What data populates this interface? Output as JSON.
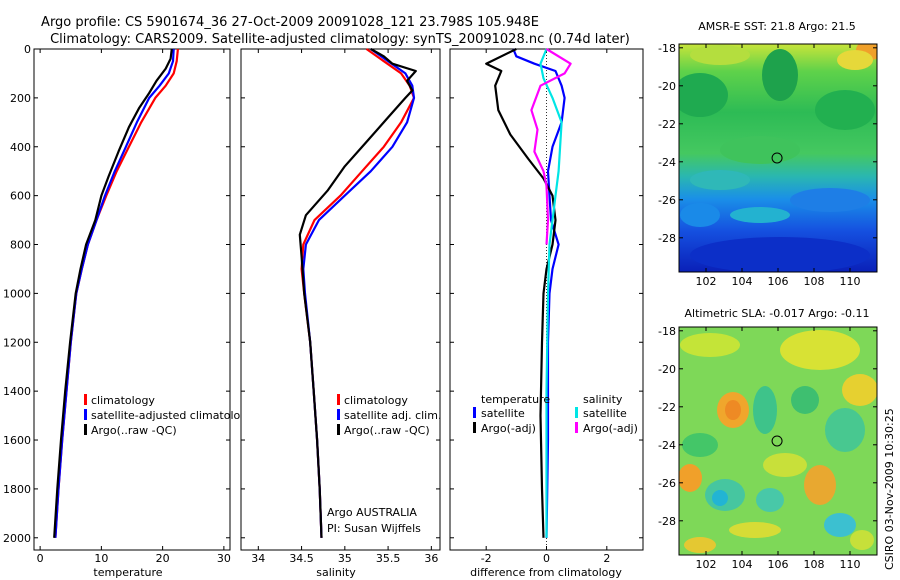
{
  "title": {
    "line1": "Argo profile: CS 5901674_36 27-Oct-2009 20091028_121 23.798S 105.948E",
    "line2": "Climatology: CARS2009. Satellite-adjusted climatology: synTS_20091028.nc (0.74d later)"
  },
  "side_label": "CSIRO 03-Nov-2009 10:30:25",
  "colors": {
    "climatology": "#ff0000",
    "satellite": "#0000ff",
    "argo": "#000000",
    "sal_satellite": "#00e5e5",
    "sal_argo": "#ff00ff"
  },
  "chart_data": [
    {
      "id": "temperature",
      "type": "line",
      "xlabel": "temperature",
      "ylabel": "",
      "xlim": [
        -1,
        31
      ],
      "ylim": [
        0,
        2050
      ],
      "y_reversed": true,
      "xticks": [
        "0",
        "10",
        "20",
        "30"
      ],
      "yticks": [
        "0",
        "200",
        "400",
        "600",
        "800",
        "1000",
        "1200",
        "1400",
        "1600",
        "1800",
        "2000"
      ],
      "legend": [
        "climatology",
        "satellite-adjusted climatolog",
        "Argo(..raw -QC)"
      ],
      "series": [
        {
          "name": "climatology",
          "color": "#ff0000",
          "points": [
            [
              22.5,
              0
            ],
            [
              22.3,
              50
            ],
            [
              21.8,
              100
            ],
            [
              20.5,
              150
            ],
            [
              18.8,
              200
            ],
            [
              16.5,
              300
            ],
            [
              14.5,
              400
            ],
            [
              12.5,
              500
            ],
            [
              10.8,
              600
            ],
            [
              9.2,
              700
            ],
            [
              7.8,
              800
            ],
            [
              6.8,
              900
            ],
            [
              5.9,
              1000
            ],
            [
              5.0,
              1200
            ],
            [
              4.3,
              1400
            ],
            [
              3.6,
              1600
            ],
            [
              3.0,
              1800
            ],
            [
              2.5,
              2000
            ]
          ]
        },
        {
          "name": "satellite",
          "color": "#0000ff",
          "points": [
            [
              21.8,
              0
            ],
            [
              21.7,
              50
            ],
            [
              21.0,
              100
            ],
            [
              19.5,
              150
            ],
            [
              17.8,
              200
            ],
            [
              15.8,
              300
            ],
            [
              14.0,
              400
            ],
            [
              12.2,
              500
            ],
            [
              10.6,
              600
            ],
            [
              9.2,
              700
            ],
            [
              7.8,
              800
            ],
            [
              6.8,
              900
            ],
            [
              5.9,
              1000
            ],
            [
              5.0,
              1200
            ],
            [
              4.3,
              1400
            ],
            [
              3.6,
              1600
            ],
            [
              3.0,
              1800
            ],
            [
              2.5,
              2000
            ]
          ]
        },
        {
          "name": "Argo",
          "color": "#000000",
          "points": [
            [
              21.5,
              0
            ],
            [
              21.3,
              40
            ],
            [
              20.5,
              80
            ],
            [
              19.0,
              130
            ],
            [
              17.8,
              180
            ],
            [
              16.2,
              240
            ],
            [
              14.5,
              320
            ],
            [
              12.8,
              420
            ],
            [
              11.2,
              520
            ],
            [
              10.0,
              600
            ],
            [
              9.0,
              700
            ],
            [
              7.5,
              800
            ],
            [
              6.6,
              900
            ],
            [
              5.8,
              1000
            ],
            [
              4.9,
              1200
            ],
            [
              4.1,
              1400
            ],
            [
              3.4,
              1600
            ],
            [
              2.8,
              1800
            ],
            [
              2.3,
              2000
            ]
          ]
        }
      ]
    },
    {
      "id": "salinity",
      "type": "line",
      "xlabel": "salinity",
      "xlim": [
        33.8,
        36.1
      ],
      "ylim": [
        0,
        2050
      ],
      "y_reversed": true,
      "xticks": [
        "34",
        "34.5",
        "35",
        "35.5",
        "36"
      ],
      "legend": [
        "climatology",
        "satellite adj. clim.",
        "Argo(..raw -QC)"
      ],
      "annotation": [
        "Argo AUSTRALIA",
        "PI: Susan Wijffels"
      ],
      "series": [
        {
          "name": "climatology",
          "color": "#ff0000",
          "points": [
            [
              35.25,
              0
            ],
            [
              35.45,
              50
            ],
            [
              35.65,
              100
            ],
            [
              35.75,
              150
            ],
            [
              35.8,
              200
            ],
            [
              35.65,
              300
            ],
            [
              35.45,
              400
            ],
            [
              35.2,
              500
            ],
            [
              34.95,
              600
            ],
            [
              34.65,
              700
            ],
            [
              34.52,
              800
            ],
            [
              34.5,
              900
            ],
            [
              34.53,
              1000
            ],
            [
              34.6,
              1200
            ],
            [
              34.64,
              1400
            ],
            [
              34.68,
              1600
            ],
            [
              34.71,
              1800
            ],
            [
              34.73,
              2000
            ]
          ]
        },
        {
          "name": "satellite",
          "color": "#0000ff",
          "points": [
            [
              35.3,
              0
            ],
            [
              35.5,
              50
            ],
            [
              35.7,
              100
            ],
            [
              35.78,
              150
            ],
            [
              35.8,
              200
            ],
            [
              35.72,
              300
            ],
            [
              35.55,
              400
            ],
            [
              35.3,
              500
            ],
            [
              35.0,
              600
            ],
            [
              34.7,
              700
            ],
            [
              34.55,
              800
            ],
            [
              34.52,
              900
            ],
            [
              34.54,
              1000
            ],
            [
              34.6,
              1200
            ],
            [
              34.64,
              1400
            ],
            [
              34.68,
              1600
            ],
            [
              34.71,
              1800
            ],
            [
              34.73,
              2000
            ]
          ]
        },
        {
          "name": "Argo",
          "color": "#000000",
          "points": [
            [
              35.3,
              0
            ],
            [
              35.45,
              30
            ],
            [
              35.55,
              60
            ],
            [
              35.82,
              90
            ],
            [
              35.72,
              130
            ],
            [
              35.78,
              170
            ],
            [
              35.7,
              200
            ],
            [
              35.5,
              280
            ],
            [
              35.25,
              380
            ],
            [
              35.0,
              480
            ],
            [
              34.8,
              580
            ],
            [
              34.55,
              680
            ],
            [
              34.48,
              760
            ],
            [
              34.5,
              850
            ],
            [
              34.53,
              1000
            ],
            [
              34.6,
              1200
            ],
            [
              34.64,
              1400
            ],
            [
              34.68,
              1600
            ],
            [
              34.71,
              1800
            ],
            [
              34.73,
              2000
            ]
          ]
        }
      ]
    },
    {
      "id": "difference",
      "type": "line",
      "xlabel": "difference from climatology",
      "xlim": [
        -3.2,
        3.2
      ],
      "ylim": [
        0,
        2050
      ],
      "y_reversed": true,
      "xticks": [
        "-2",
        "0",
        "2"
      ],
      "legend_temperature_heading": "temperature",
      "legend_salinity_heading": "salinity",
      "legend": [
        "satellite",
        "Argo(-adj)",
        "satellite",
        "Argo(-adj)"
      ],
      "series": [
        {
          "name": "temperature satellite",
          "color": "#0000ff",
          "points": [
            [
              -1.1,
              0
            ],
            [
              -1.0,
              30
            ],
            [
              -0.4,
              60
            ],
            [
              0.3,
              90
            ],
            [
              0.5,
              150
            ],
            [
              0.6,
              200
            ],
            [
              0.5,
              300
            ],
            [
              0.2,
              400
            ],
            [
              0.05,
              500
            ],
            [
              0.1,
              600
            ],
            [
              0.15,
              700
            ],
            [
              0.4,
              800
            ],
            [
              0.2,
              900
            ],
            [
              0.1,
              1000
            ],
            [
              0.05,
              1200
            ],
            [
              0.05,
              1600
            ],
            [
              0.0,
              2000
            ]
          ]
        },
        {
          "name": "temperature Argo",
          "color": "#000000",
          "points": [
            [
              -1.0,
              0
            ],
            [
              -2.0,
              60
            ],
            [
              -1.5,
              90
            ],
            [
              -1.7,
              150
            ],
            [
              -1.6,
              250
            ],
            [
              -1.2,
              350
            ],
            [
              -0.6,
              450
            ],
            [
              -0.1,
              530
            ],
            [
              0.2,
              600
            ],
            [
              0.3,
              700
            ],
            [
              0.2,
              800
            ],
            [
              0.0,
              900
            ],
            [
              -0.1,
              1000
            ],
            [
              -0.15,
              1200
            ],
            [
              -0.2,
              1500
            ],
            [
              -0.15,
              1800
            ],
            [
              -0.1,
              2000
            ]
          ]
        },
        {
          "name": "salinity satellite",
          "color": "#00e5e5",
          "points": [
            [
              0.0,
              0
            ],
            [
              -0.2,
              60
            ],
            [
              -0.1,
              120
            ],
            [
              0.2,
              200
            ],
            [
              0.5,
              300
            ],
            [
              0.45,
              400
            ],
            [
              0.4,
              500
            ],
            [
              0.3,
              600
            ],
            [
              0.2,
              700
            ],
            [
              0.1,
              800
            ],
            [
              0.05,
              1000
            ],
            [
              0.0,
              1400
            ],
            [
              0.0,
              2000
            ]
          ]
        },
        {
          "name": "salinity Argo",
          "color": "#ff00ff",
          "points": [
            [
              0.0,
              0
            ],
            [
              0.8,
              60
            ],
            [
              0.6,
              100
            ],
            [
              -0.2,
              150
            ],
            [
              -0.5,
              250
            ],
            [
              -0.3,
              330
            ],
            [
              -0.4,
              420
            ],
            [
              -0.1,
              500
            ],
            [
              0.0,
              560
            ],
            [
              0.05,
              700
            ],
            [
              0.0,
              800
            ]
          ]
        }
      ]
    },
    {
      "id": "sst_map",
      "type": "heatmap",
      "title": "AMSR-E SST: 21.8  Argo: 21.5",
      "xticks": [
        "102",
        "104",
        "106",
        "108",
        "110"
      ],
      "yticks": [
        "-18",
        "-20",
        "-22",
        "-24",
        "-26",
        "-28"
      ],
      "xlim": [
        100.5,
        111.5
      ],
      "ylim": [
        -29.8,
        -17.8
      ],
      "marker": {
        "lon": 105.948,
        "lat": -23.798
      }
    },
    {
      "id": "sla_map",
      "type": "heatmap",
      "title": "Altimetric SLA: -0.017  Argo: -0.11",
      "xticks": [
        "102",
        "104",
        "106",
        "108",
        "110"
      ],
      "yticks": [
        "-18",
        "-20",
        "-22",
        "-24",
        "-26",
        "-28"
      ],
      "xlim": [
        100.5,
        111.5
      ],
      "ylim": [
        -29.8,
        -17.8
      ],
      "marker": {
        "lon": 105.948,
        "lat": -23.798
      }
    }
  ]
}
